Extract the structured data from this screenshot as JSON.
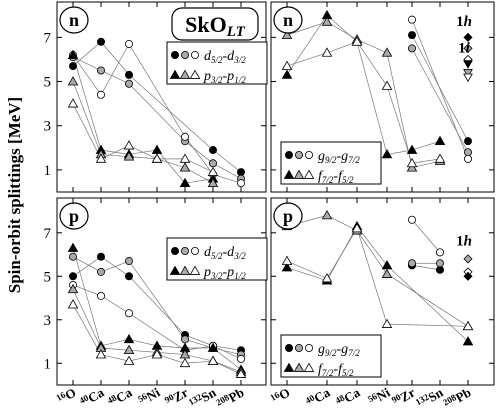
{
  "figure": {
    "ylabel": "Spin-orbit splittings [MeV]",
    "model_label": "SkO",
    "model_label_sub": "LT",
    "x_tick_labels": [
      {
        "mass": "16",
        "el": "O"
      },
      {
        "mass": "40",
        "el": "Ca"
      },
      {
        "mass": "48",
        "el": "Ca"
      },
      {
        "mass": "56",
        "el": "Ni"
      },
      {
        "mass": "90",
        "el": "Zr"
      },
      {
        "mass": "132",
        "el": "Sn"
      },
      {
        "mass": "208",
        "el": "Pb"
      }
    ],
    "y_ticks": [
      1,
      3,
      5,
      7
    ],
    "series_colors": {
      "exp": "#000000",
      "mid": "#aaaaaa",
      "open": "#ffffff"
    }
  },
  "chart_data": [
    {
      "type": "scatter",
      "panel": "top-left",
      "nucleon": "n",
      "ylim": [
        0,
        8.6
      ],
      "x": [
        "16O",
        "40Ca",
        "48Ca",
        "56Ni",
        "90Zr",
        "132Sn",
        "208Pb"
      ],
      "legend": [
        {
          "text": "d",
          "sub": "5/2",
          "text2": "-d",
          "sub2": "3/2",
          "marker": "circle"
        },
        {
          "text": "p",
          "sub": "3/2",
          "text2": "-p",
          "sub2": "1/2",
          "marker": "triangle"
        }
      ],
      "legend_position": "top-right",
      "series": [
        {
          "marker": "circle",
          "fill": "exp",
          "values": [
            5.7,
            6.8,
            5.3,
            null,
            null,
            1.9,
            0.9
          ]
        },
        {
          "marker": "circle",
          "fill": "mid",
          "values": [
            6.1,
            5.5,
            4.9,
            null,
            2.3,
            1.3,
            0.6
          ]
        },
        {
          "marker": "circle",
          "fill": "open",
          "values": [
            6.2,
            4.4,
            6.7,
            null,
            2.5,
            0.8,
            0.4
          ]
        },
        {
          "marker": "triangle",
          "fill": "exp",
          "values": [
            6.2,
            1.9,
            1.7,
            1.9,
            0.4,
            0.6,
            null
          ]
        },
        {
          "marker": "triangle",
          "fill": "mid",
          "values": [
            5.0,
            1.7,
            1.6,
            1.5,
            1.1,
            0.4,
            null
          ]
        },
        {
          "marker": "triangle",
          "fill": "open",
          "values": [
            4.0,
            1.5,
            2.1,
            1.5,
            1.5,
            0.9,
            null
          ]
        }
      ]
    },
    {
      "type": "scatter",
      "panel": "top-right",
      "nucleon": "n",
      "ylim": [
        0,
        8.6
      ],
      "x": [
        "16O",
        "40Ca",
        "48Ca",
        "56Ni",
        "90Zr",
        "132Sn",
        "208Pb"
      ],
      "legend": [
        {
          "text": "g",
          "sub": "9/2",
          "text2": "-g",
          "sub2": "7/2",
          "marker": "circle"
        },
        {
          "text": "f",
          "sub": "7/2",
          "text2": "-f",
          "sub2": "5/2",
          "marker": "triangle"
        }
      ],
      "legend_position": "bottom-left",
      "annotations": [
        {
          "text": "1h",
          "x": "208Pb",
          "y": 7.6
        },
        {
          "text": "1i",
          "x": "208Pb",
          "y": 6.4
        }
      ],
      "extra_markers": [
        {
          "marker": "diamond",
          "fill": "exp",
          "x": "208Pb",
          "y": 7.0
        },
        {
          "marker": "diamond",
          "fill": "mid",
          "x": "208Pb",
          "y": 6.5
        },
        {
          "marker": "diamond",
          "fill": "open",
          "x": "208Pb",
          "y": 6.0
        },
        {
          "marker": "triangle-down",
          "fill": "exp",
          "x": "208Pb",
          "y": 5.8
        },
        {
          "marker": "triangle-down",
          "fill": "mid",
          "x": "208Pb",
          "y": 5.4
        },
        {
          "marker": "triangle-down",
          "fill": "open",
          "x": "208Pb",
          "y": 5.2
        }
      ],
      "series": [
        {
          "marker": "circle",
          "fill": "exp",
          "values": [
            null,
            null,
            null,
            null,
            7.1,
            null,
            2.3
          ]
        },
        {
          "marker": "circle",
          "fill": "mid",
          "values": [
            null,
            null,
            null,
            null,
            6.5,
            null,
            1.8
          ]
        },
        {
          "marker": "circle",
          "fill": "open",
          "values": [
            null,
            null,
            null,
            null,
            7.8,
            null,
            1.5
          ]
        },
        {
          "marker": "triangle",
          "fill": "exp",
          "values": [
            5.3,
            8.0,
            6.8,
            1.7,
            1.9,
            2.3,
            null
          ]
        },
        {
          "marker": "triangle",
          "fill": "mid",
          "values": [
            7.1,
            7.7,
            6.9,
            6.3,
            1.1,
            1.4,
            null
          ]
        },
        {
          "marker": "triangle",
          "fill": "open",
          "values": [
            5.7,
            6.3,
            6.8,
            4.8,
            1.3,
            1.5,
            null
          ]
        }
      ]
    },
    {
      "type": "scatter",
      "panel": "bottom-left",
      "nucleon": "p",
      "ylim": [
        0,
        8.6
      ],
      "x": [
        "16O",
        "40Ca",
        "48Ca",
        "56Ni",
        "90Zr",
        "132Sn",
        "208Pb"
      ],
      "legend": [
        {
          "text": "d",
          "sub": "5/2",
          "text2": "-d",
          "sub2": "3/2",
          "marker": "circle"
        },
        {
          "text": "p",
          "sub": "3/2",
          "text2": "-p",
          "sub2": "1/2",
          "marker": "triangle"
        }
      ],
      "legend_position": "top-right",
      "series": [
        {
          "marker": "circle",
          "fill": "exp",
          "values": [
            5.0,
            5.9,
            5.0,
            null,
            2.3,
            1.8,
            1.6
          ]
        },
        {
          "marker": "circle",
          "fill": "mid",
          "values": [
            5.9,
            5.2,
            5.7,
            null,
            2.1,
            1.7,
            1.4
          ]
        },
        {
          "marker": "circle",
          "fill": "open",
          "values": [
            4.6,
            4.1,
            3.3,
            null,
            1.6,
            1.8,
            1.2
          ]
        },
        {
          "marker": "triangle",
          "fill": "exp",
          "values": [
            6.3,
            1.8,
            2.1,
            1.8,
            1.7,
            1.7,
            0.7
          ]
        },
        {
          "marker": "triangle",
          "fill": "mid",
          "values": [
            4.4,
            1.7,
            1.6,
            1.5,
            1.4,
            1.1,
            0.6
          ]
        },
        {
          "marker": "triangle",
          "fill": "open",
          "values": [
            3.7,
            1.4,
            1.1,
            1.4,
            1.0,
            1.1,
            0.5
          ]
        }
      ]
    },
    {
      "type": "scatter",
      "panel": "bottom-right",
      "nucleon": "p",
      "ylim": [
        0,
        8.6
      ],
      "x": [
        "16O",
        "40Ca",
        "48Ca",
        "56Ni",
        "90Zr",
        "132Sn",
        "208Pb"
      ],
      "legend": [
        {
          "text": "g",
          "sub": "9/2",
          "text2": "-g",
          "sub2": "7/2",
          "marker": "circle"
        },
        {
          "text": "f",
          "sub": "7/2",
          "text2": "-f",
          "sub2": "5/2",
          "marker": "triangle"
        }
      ],
      "legend_position": "bottom-left",
      "annotations": [
        {
          "text": "1h",
          "x": "208Pb",
          "y": 6.5
        }
      ],
      "extra_markers": [
        {
          "marker": "diamond",
          "fill": "mid",
          "x": "208Pb",
          "y": 5.8
        },
        {
          "marker": "diamond",
          "fill": "open",
          "x": "208Pb",
          "y": 5.2
        },
        {
          "marker": "diamond",
          "fill": "exp",
          "x": "208Pb",
          "y": 5.0
        }
      ],
      "series": [
        {
          "marker": "circle",
          "fill": "exp",
          "values": [
            null,
            null,
            null,
            null,
            5.5,
            5.3,
            null
          ]
        },
        {
          "marker": "circle",
          "fill": "mid",
          "values": [
            null,
            null,
            null,
            null,
            5.6,
            5.6,
            null
          ]
        },
        {
          "marker": "circle",
          "fill": "open",
          "values": [
            null,
            null,
            null,
            null,
            7.6,
            6.1,
            null
          ]
        },
        {
          "marker": "triangle",
          "fill": "exp",
          "values": [
            5.4,
            4.8,
            7.3,
            5.5,
            null,
            null,
            2.0
          ]
        },
        {
          "marker": "triangle",
          "fill": "mid",
          "values": [
            7.3,
            7.8,
            7.1,
            5.1,
            null,
            null,
            2.7
          ]
        },
        {
          "marker": "triangle",
          "fill": "open",
          "values": [
            5.7,
            4.9,
            7.2,
            2.8,
            null,
            null,
            2.7
          ]
        }
      ]
    }
  ]
}
